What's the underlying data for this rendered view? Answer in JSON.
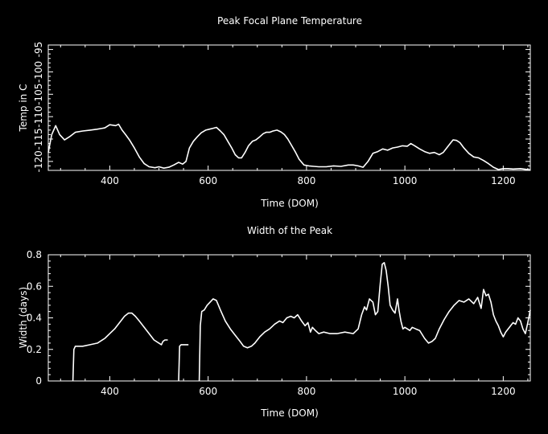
{
  "chart_data": [
    {
      "type": "line",
      "title": "Peak Focal Plane Temperature",
      "xlabel": "Time (DOM)",
      "ylabel": "Temp in C",
      "xlim": [
        275,
        1255
      ],
      "ylim": [
        -122,
        -94
      ],
      "xticks": [
        400,
        600,
        800,
        1000,
        1200
      ],
      "yticks": [
        -120,
        -115,
        -110,
        -105,
        -100,
        -95
      ],
      "grid": false,
      "series": [
        {
          "x": [
            275,
            282,
            290,
            298,
            308,
            318,
            330,
            345,
            360,
            375,
            390,
            400,
            412,
            418,
            425,
            432,
            440,
            450,
            460,
            470,
            480,
            492,
            500,
            510,
            520,
            530,
            540,
            548,
            555,
            562,
            570,
            578,
            586,
            595,
            603,
            610,
            617,
            625,
            632,
            640,
            648,
            655,
            662,
            668,
            675,
            682,
            690,
            697,
            705,
            712,
            718,
            725,
            732,
            740,
            748,
            755,
            762,
            770,
            778,
            785,
            795,
            805,
            815,
            825,
            840,
            855,
            870,
            885,
            895,
            905,
            915,
            925,
            935,
            945,
            955,
            965,
            975,
            985,
            995,
            1005,
            1012,
            1020,
            1030,
            1040,
            1050,
            1060,
            1070,
            1078,
            1085,
            1092,
            1098,
            1105,
            1112,
            1120,
            1130,
            1140,
            1150,
            1160,
            1170,
            1180,
            1190,
            1200,
            1210,
            1220,
            1235,
            1255
          ],
          "y": [
            -118,
            -114,
            -112,
            -114,
            -115.2,
            -114.5,
            -113.5,
            -113.2,
            -113,
            -112.8,
            -112.5,
            -111.8,
            -112.0,
            -111.7,
            -113,
            -114,
            -115.2,
            -117,
            -119,
            -120.5,
            -121.2,
            -121.4,
            -121.2,
            -121.5,
            -121.3,
            -120.8,
            -120.2,
            -120.6,
            -120,
            -117,
            -115.5,
            -114.5,
            -113.6,
            -113,
            -112.8,
            -112.6,
            -112.4,
            -113.2,
            -114,
            -115.5,
            -117,
            -118.5,
            -119.2,
            -119.2,
            -118,
            -116.5,
            -115.5,
            -115.2,
            -114.5,
            -113.8,
            -113.5,
            -113.5,
            -113.2,
            -113,
            -113.4,
            -114,
            -115,
            -116.5,
            -118,
            -119.5,
            -120.8,
            -121.0,
            -121.1,
            -121.2,
            -121.2,
            -121.0,
            -121.1,
            -120.8,
            -120.8,
            -121.0,
            -121.3,
            -120.0,
            -118.2,
            -117.8,
            -117.2,
            -117.5,
            -117.0,
            -116.8,
            -116.5,
            -116.6,
            -116.0,
            -116.5,
            -117.2,
            -117.8,
            -118.2,
            -118.0,
            -118.5,
            -118.0,
            -117.0,
            -116.0,
            -115.2,
            -115.3,
            -115.8,
            -117.0,
            -118.2,
            -119.0,
            -119.2,
            -119.8,
            -120.5,
            -121.3,
            -121.8,
            -121.6,
            -121.6,
            -121.7,
            -121.6,
            -121.9
          ]
        }
      ]
    },
    {
      "type": "line",
      "title": "Width of the Peak",
      "xlabel": "Time (DOM)",
      "ylabel": "Width (days)",
      "xlim": [
        275,
        1255
      ],
      "ylim": [
        0,
        0.8
      ],
      "xticks": [
        400,
        600,
        800,
        1000,
        1200
      ],
      "yticks": [
        0,
        0.2,
        0.4,
        0.6,
        0.8
      ],
      "grid": false,
      "series": [
        {
          "x": [
            325,
            327,
            330,
            345,
            360,
            375,
            390,
            400,
            410,
            420,
            430,
            438,
            445,
            452,
            460,
            470,
            480,
            490,
            500,
            505,
            508,
            512,
            518
          ],
          "y": [
            0.0,
            0.2,
            0.22,
            0.22,
            0.23,
            0.24,
            0.27,
            0.3,
            0.33,
            0.37,
            0.41,
            0.43,
            0.43,
            0.41,
            0.38,
            0.34,
            0.3,
            0.26,
            0.24,
            0.23,
            0.25,
            0.26,
            0.26
          ]
        },
        {
          "x": [
            540,
            542,
            545,
            552,
            560
          ],
          "y": [
            0.0,
            0.22,
            0.23,
            0.23,
            0.23
          ]
        },
        {
          "x": [
            582,
            584,
            587,
            592,
            598,
            604,
            610,
            617,
            625,
            635,
            645,
            655,
            665,
            672,
            680,
            688,
            695,
            705,
            715,
            725,
            735,
            745,
            752,
            760,
            768,
            775,
            782,
            790,
            797,
            803,
            808,
            812,
            818,
            825,
            835,
            848,
            862,
            878,
            895,
            905,
            912,
            918,
            922,
            928,
            935,
            940,
            945,
            950,
            954,
            958,
            962,
            966,
            970,
            975,
            980,
            985,
            988,
            992,
            996,
            1000,
            1005,
            1010,
            1015,
            1022,
            1030,
            1040,
            1048,
            1055,
            1062,
            1070,
            1080,
            1090,
            1100,
            1110,
            1120,
            1130,
            1140,
            1148,
            1155,
            1160,
            1165,
            1170,
            1175,
            1180,
            1185,
            1190,
            1195,
            1200,
            1205,
            1210,
            1215,
            1220,
            1225,
            1230,
            1235,
            1240,
            1245,
            1250,
            1255
          ],
          "y": [
            0.0,
            0.35,
            0.44,
            0.45,
            0.48,
            0.5,
            0.52,
            0.51,
            0.45,
            0.38,
            0.33,
            0.29,
            0.25,
            0.22,
            0.21,
            0.22,
            0.24,
            0.28,
            0.31,
            0.33,
            0.36,
            0.38,
            0.37,
            0.4,
            0.41,
            0.4,
            0.42,
            0.38,
            0.35,
            0.37,
            0.31,
            0.34,
            0.32,
            0.3,
            0.31,
            0.3,
            0.3,
            0.31,
            0.3,
            0.33,
            0.42,
            0.47,
            0.45,
            0.52,
            0.5,
            0.42,
            0.44,
            0.62,
            0.74,
            0.75,
            0.7,
            0.6,
            0.48,
            0.45,
            0.43,
            0.52,
            0.45,
            0.38,
            0.33,
            0.34,
            0.33,
            0.32,
            0.34,
            0.33,
            0.32,
            0.27,
            0.24,
            0.25,
            0.27,
            0.33,
            0.39,
            0.44,
            0.48,
            0.51,
            0.5,
            0.52,
            0.49,
            0.53,
            0.46,
            0.58,
            0.54,
            0.55,
            0.5,
            0.42,
            0.38,
            0.35,
            0.31,
            0.28,
            0.31,
            0.33,
            0.35,
            0.37,
            0.36,
            0.4,
            0.38,
            0.33,
            0.3,
            0.37,
            0.45
          ]
        }
      ]
    }
  ]
}
